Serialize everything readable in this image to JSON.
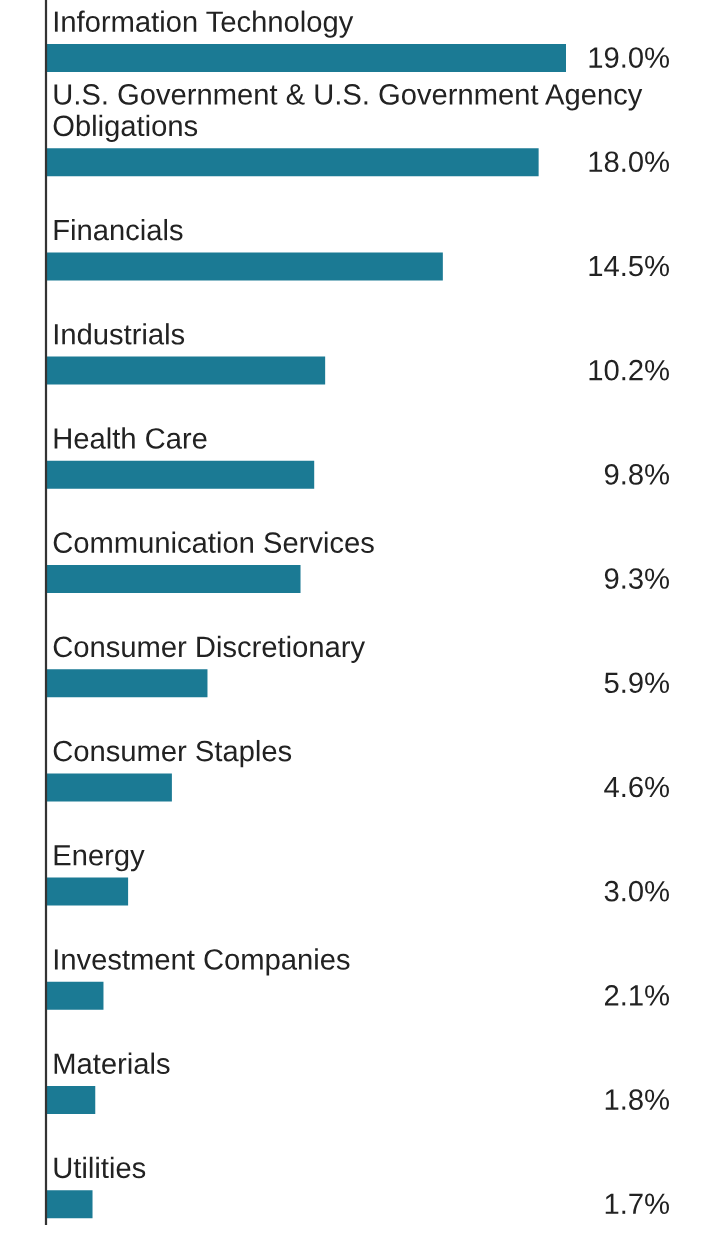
{
  "chart_data": {
    "type": "bar",
    "orientation": "horizontal",
    "categories": [
      "Information Technology",
      "U.S. Government & U.S. Government Agency Obligations",
      "Financials",
      "Industrials",
      "Health Care",
      "Communication Services",
      "Consumer Discretionary",
      "Consumer Staples",
      "Energy",
      "Investment Companies",
      "Materials",
      "Utilities"
    ],
    "values": [
      19.0,
      18.0,
      14.5,
      10.2,
      9.8,
      9.3,
      5.9,
      4.6,
      3.0,
      2.1,
      1.8,
      1.7
    ],
    "value_labels": [
      "19.0%",
      "18.0%",
      "14.5%",
      "10.2%",
      "9.8%",
      "9.3%",
      "5.9%",
      "4.6%",
      "3.0%",
      "2.1%",
      "1.8%",
      "1.7%"
    ],
    "color": "#1b7a94"
  }
}
